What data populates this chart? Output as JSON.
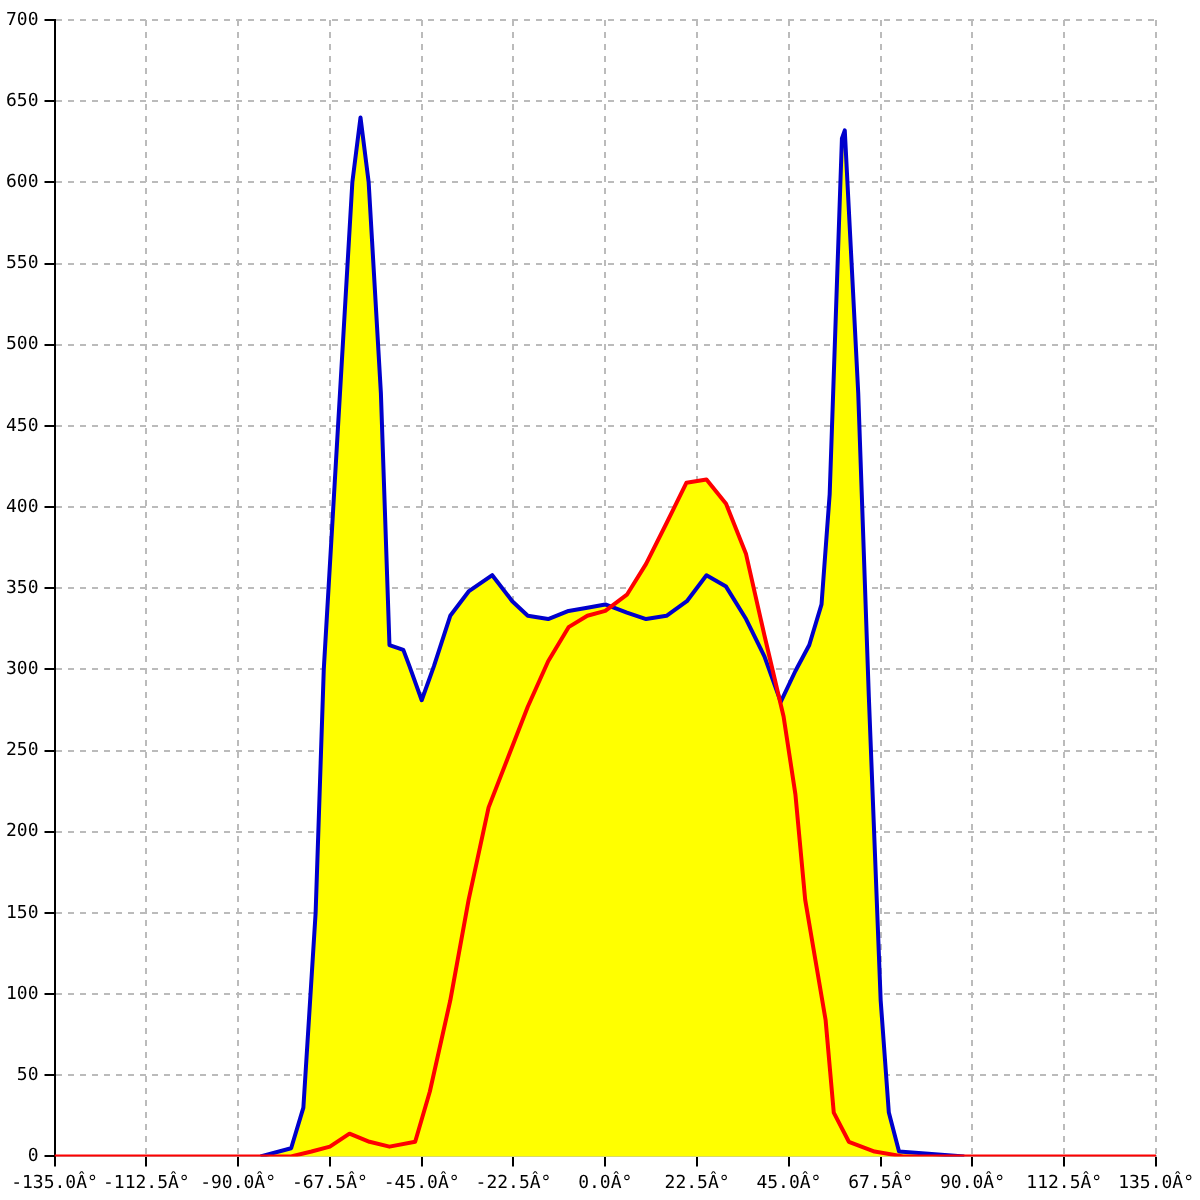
{
  "chart_data": {
    "type": "line",
    "grid": true,
    "xlim": [
      -135,
      135
    ],
    "ylim": [
      0,
      700
    ],
    "xticks": [
      {
        "value": -135,
        "label": "-135.0Â°"
      },
      {
        "value": -112.5,
        "label": "-112.5Â°"
      },
      {
        "value": -90,
        "label": "-90.0Â°"
      },
      {
        "value": -67.5,
        "label": "-67.5Â°"
      },
      {
        "value": -45,
        "label": "-45.0Â°"
      },
      {
        "value": -22.5,
        "label": "-22.5Â°"
      },
      {
        "value": 0,
        "label": "0.0Â°"
      },
      {
        "value": 22.5,
        "label": "22.5Â°"
      },
      {
        "value": 45,
        "label": "45.0Â°"
      },
      {
        "value": 67.5,
        "label": "67.5Â°"
      },
      {
        "value": 90,
        "label": "90.0Â°"
      },
      {
        "value": 112.5,
        "label": "112.5Â°"
      },
      {
        "value": 135,
        "label": "135.0Â°"
      }
    ],
    "yticks": [
      0,
      50,
      100,
      150,
      200,
      250,
      300,
      350,
      400,
      450,
      500,
      550,
      600,
      650,
      700
    ],
    "series": [
      {
        "color": "#0000cc",
        "x": [
          -84.5,
          -77,
          -74,
          -71,
          -69,
          -62,
          -60,
          -58,
          -55,
          -52.9,
          -49.5,
          -48,
          -45,
          -42,
          -38,
          -33.5,
          -27.7,
          -22.8,
          -19,
          -14,
          -9,
          -4.4,
          0,
          5.3,
          10,
          15,
          20,
          24.8,
          29.6,
          34.5,
          39,
          43,
          46.6,
          50,
          53,
          55,
          58,
          58.7,
          62,
          64.6,
          67.5,
          69.5,
          72,
          88
        ],
        "values": [
          0,
          5,
          30,
          150,
          300,
          600,
          640,
          600,
          470,
          315,
          312,
          302,
          281,
          302,
          333,
          348,
          358,
          342,
          333,
          331,
          336,
          338,
          340,
          335,
          331,
          333,
          342,
          358,
          351,
          331,
          308,
          280,
          299,
          315,
          340,
          408,
          627,
          632,
          470,
          283,
          96,
          27,
          3,
          0
        ]
      },
      {
        "color": "#ff0000",
        "x": [
          -135,
          -77,
          -72,
          -67.5,
          -62.7,
          -57.8,
          -52.9,
          -46.6,
          -43,
          -38,
          -33.5,
          -28.6,
          -23.8,
          -19,
          -14,
          -9,
          -4.4,
          0,
          5.3,
          10,
          15,
          19.9,
          24.8,
          29.6,
          34.5,
          39,
          43.7,
          46.6,
          49,
          51.5,
          54,
          56,
          59.7,
          66,
          73,
          135
        ],
        "values": [
          0,
          0,
          3,
          6,
          14,
          9,
          6,
          9,
          40,
          96,
          158,
          215,
          246,
          277,
          305,
          326,
          333,
          336,
          346,
          365,
          390,
          415,
          417,
          402,
          371,
          321,
          271,
          223,
          158,
          121,
          84,
          27,
          9,
          3,
          0,
          0
        ]
      }
    ]
  }
}
